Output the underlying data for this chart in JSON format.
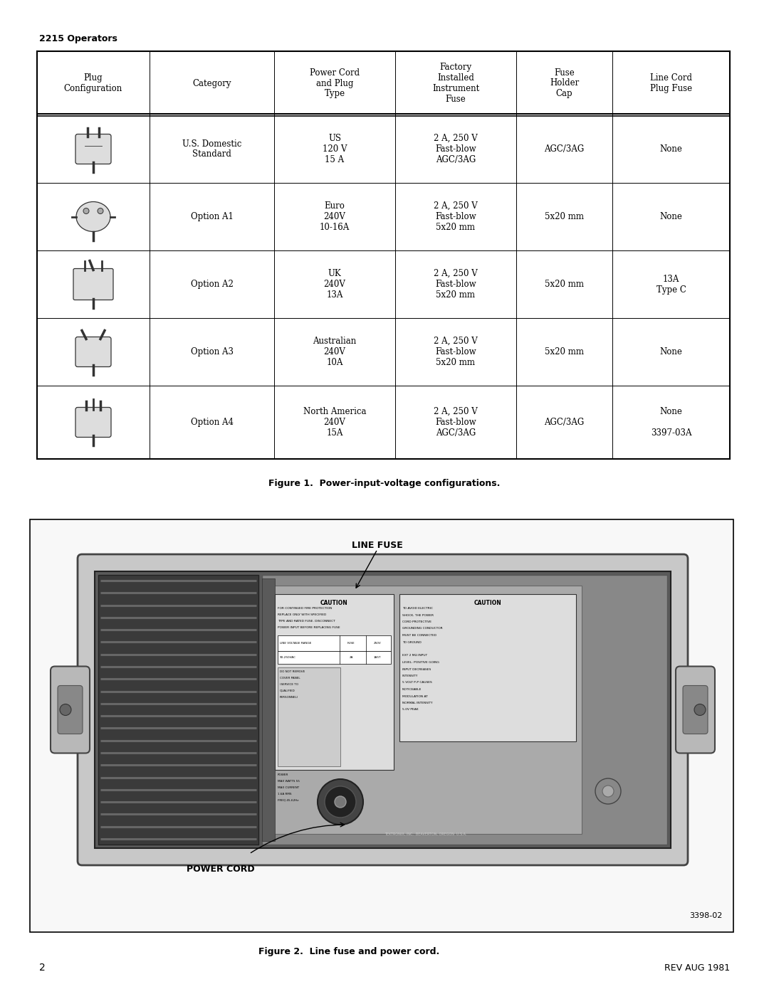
{
  "page_title": "2215 Operators",
  "page_number": "2",
  "page_rev": "REV AUG 1981",
  "bg_color": "#ffffff",
  "table": {
    "headers": [
      "Plug\nConfiguration",
      "Category",
      "Power Cord\nand Plug\nType",
      "Factory\nInstalled\nInstrument\nFuse",
      "Fuse\nHolder\nCap",
      "Line Cord\nPlug Fuse"
    ],
    "rows": [
      [
        "plug",
        "U.S. Domestic\nStandard",
        "US\n120 V\n15 A",
        "2 A, 250 V\nFast-blow\nAGC/3AG",
        "AGC/3AG",
        "None"
      ],
      [
        "plug",
        "Option A1",
        "Euro\n240V\n10-16A",
        "2 A, 250 V\nFast-blow\n5x20 mm",
        "5x20 mm",
        "None"
      ],
      [
        "plug",
        "Option A2",
        "UK\n240V\n13A",
        "2 A, 250 V\nFast-blow\n5x20 mm",
        "5x20 mm",
        "13A\nType C"
      ],
      [
        "plug",
        "Option A3",
        "Australian\n240V\n10A",
        "2 A, 250 V\nFast-blow\n5x20 mm",
        "5x20 mm",
        "None"
      ],
      [
        "plug",
        "Option A4",
        "North America\n240V\n15A",
        "2 A, 250 V\nFast-blow\nAGC/3AG",
        "AGC/3AG",
        "None\n\n3397-03A"
      ]
    ]
  },
  "fig1_caption": "Figure 1.  Power-input-voltage configurations.",
  "fig2_caption": "Figure 2.  Line fuse and power cord.",
  "fig2_label_line_fuse": "LINE FUSE",
  "fig2_label_power_cord": "POWER CORD",
  "fig2_ref": "3398-02",
  "table_font_size": 8.5,
  "header_font_size": 8.5,
  "caption_font_size": 8.5
}
